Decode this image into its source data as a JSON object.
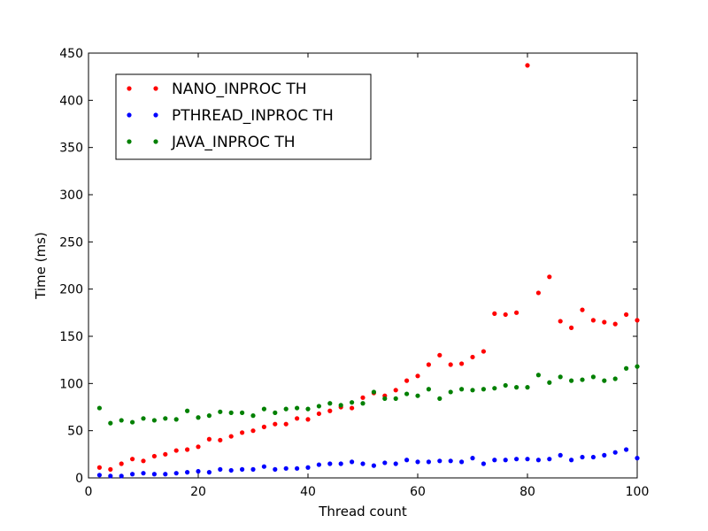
{
  "chart_data": {
    "type": "scatter",
    "title": "",
    "xlabel": "Thread count",
    "ylabel": "Time (ms)",
    "xlim": [
      0,
      100
    ],
    "ylim": [
      0,
      450
    ],
    "xticks": [
      0,
      20,
      40,
      60,
      80,
      100
    ],
    "yticks": [
      0,
      50,
      100,
      150,
      200,
      250,
      300,
      350,
      400,
      450
    ],
    "grid": false,
    "legend_position": "top-left",
    "x": [
      2,
      4,
      6,
      8,
      10,
      12,
      14,
      16,
      18,
      20,
      22,
      24,
      26,
      28,
      30,
      32,
      34,
      36,
      38,
      40,
      42,
      44,
      46,
      48,
      50,
      52,
      54,
      56,
      58,
      60,
      62,
      64,
      66,
      68,
      70,
      72,
      74,
      76,
      78,
      80,
      82,
      84,
      86,
      88,
      90,
      92,
      94,
      96,
      98,
      100
    ],
    "series": [
      {
        "name": "NANO_INPROC TH",
        "color": "#ff0000",
        "values": [
          11,
          9,
          15,
          20,
          18,
          23,
          25,
          29,
          30,
          33,
          41,
          40,
          44,
          48,
          50,
          54,
          57,
          57,
          63,
          62,
          68,
          71,
          75,
          74,
          85,
          90,
          87,
          93,
          103,
          108,
          120,
          130,
          120,
          121,
          128,
          134,
          174,
          173,
          175,
          437,
          196,
          213,
          166,
          159,
          178,
          167,
          165,
          163,
          173,
          167
        ]
      },
      {
        "name": "PTHREAD_INPROC TH",
        "color": "#0000ff",
        "values": [
          3,
          2,
          2,
          4,
          5,
          4,
          4,
          5,
          6,
          7,
          6,
          9,
          8,
          9,
          9,
          12,
          9,
          10,
          10,
          11,
          14,
          15,
          15,
          17,
          15,
          13,
          16,
          15,
          19,
          17,
          17,
          18,
          18,
          17,
          21,
          15,
          19,
          19,
          20,
          20,
          19,
          20,
          24,
          19,
          22,
          22,
          24,
          27,
          30,
          21
        ]
      },
      {
        "name": "JAVA_INPROC TH",
        "color": "#008000",
        "values": [
          74,
          58,
          61,
          59,
          63,
          61,
          63,
          62,
          71,
          64,
          66,
          70,
          69,
          69,
          66,
          73,
          69,
          73,
          74,
          73,
          76,
          79,
          77,
          80,
          79,
          91,
          84,
          84,
          89,
          87,
          94,
          84,
          91,
          94,
          93,
          94,
          95,
          98,
          96,
          96,
          109,
          101,
          107,
          103,
          104,
          107,
          103,
          105,
          116,
          118
        ]
      }
    ]
  }
}
